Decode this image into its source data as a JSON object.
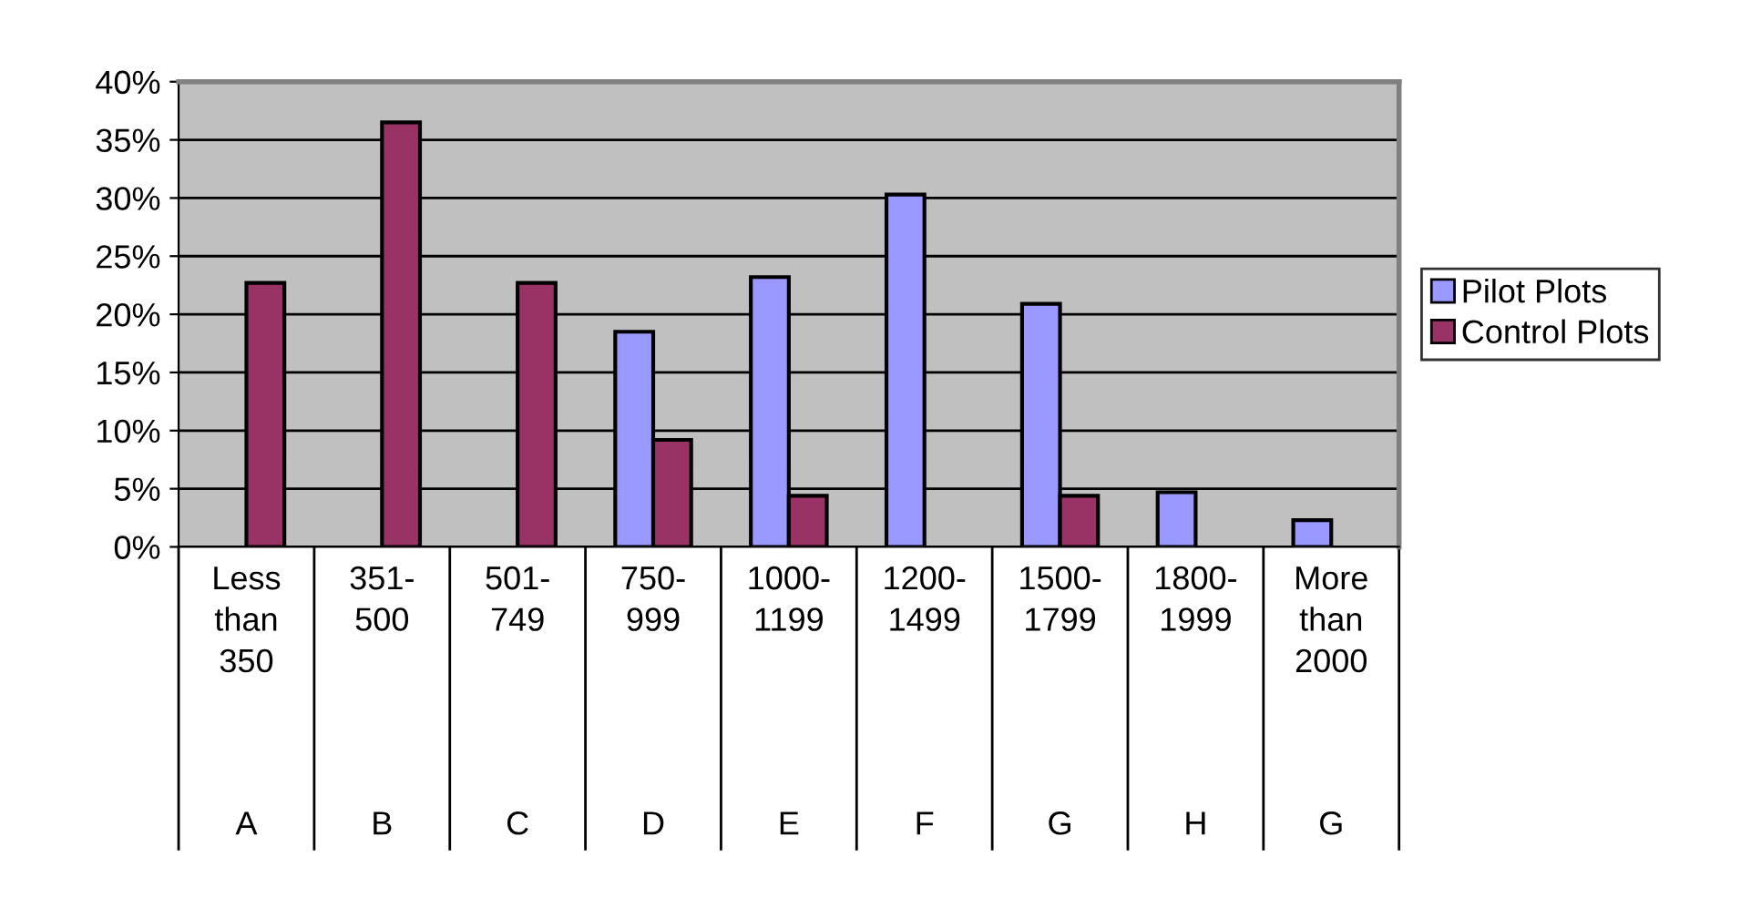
{
  "chart_data": {
    "type": "bar",
    "categories": [
      "Less than 350",
      "351-500",
      "501-749",
      "750-999",
      "1000-1199",
      "1200-1499",
      "1500-1799",
      "1800-1999",
      "More than 2000"
    ],
    "series": [
      {
        "name": "Pilot Plots",
        "color": "#9999ff",
        "values": [
          null,
          null,
          null,
          18.5,
          23.2,
          30.3,
          20.9,
          4.7,
          2.3
        ]
      },
      {
        "name": "Control Plots",
        "color": "#993366",
        "values": [
          22.7,
          36.5,
          22.7,
          9.2,
          4.4,
          null,
          4.4,
          null,
          null
        ]
      }
    ],
    "annotations": [
      "A",
      "B",
      "C",
      "D",
      "E",
      "F",
      "G",
      "H",
      "G"
    ],
    "ylim": [
      0,
      40
    ],
    "yticks": [
      {
        "value": 0,
        "label": "0%"
      },
      {
        "value": 5,
        "label": "5%"
      },
      {
        "value": 10,
        "label": "10%"
      },
      {
        "value": 15,
        "label": "15%"
      },
      {
        "value": 20,
        "label": "20%"
      },
      {
        "value": 25,
        "label": "25%"
      },
      {
        "value": 30,
        "label": "30%"
      },
      {
        "value": 35,
        "label": "35%"
      },
      {
        "value": 40,
        "label": "40%"
      }
    ],
    "grid": "y",
    "legend": "right"
  }
}
